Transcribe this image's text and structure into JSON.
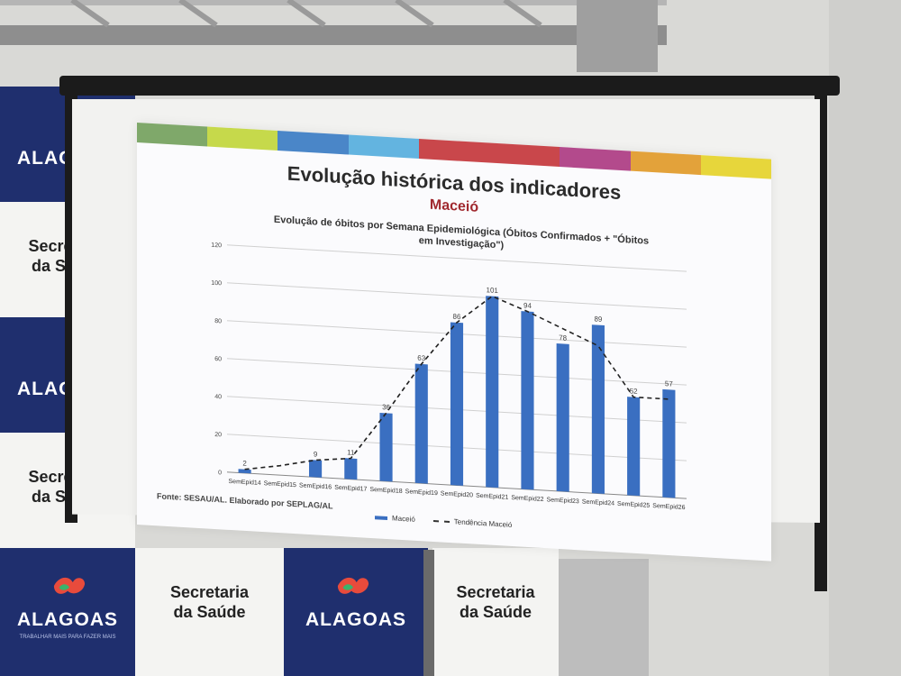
{
  "backdrop": {
    "brand": "ALAGOAS",
    "tagline": "TRABALHAR MAIS PARA FAZER MAIS",
    "dept": [
      "Secretaria",
      "da Saúde"
    ]
  },
  "slide": {
    "title": "Evolução histórica dos indicadores",
    "subtitle": "Maceió",
    "chart_title_line1": "Evolução de óbitos por Semana Epidemiológica (Óbitos Confirmados + \"Óbitos",
    "chart_title_line2": "em Investigação\")",
    "source": "Fonte: SESAU/AL. Elaborado por SEPLAG/AL",
    "strip_colors": [
      "#7fa86a",
      "#c6d94b",
      "#4a86c8",
      "#63b4e0",
      "#c9474b",
      "#c9474b",
      "#b34a8c",
      "#e3a23a",
      "#e7d63b"
    ]
  },
  "chart_data": {
    "type": "bar",
    "categories": [
      "SemEpid14",
      "SemEpid15",
      "SemEpid16",
      "SemEpid17",
      "SemEpid18",
      "SemEpid19",
      "SemEpid20",
      "SemEpid21",
      "SemEpid22",
      "SemEpid23",
      "SemEpid24",
      "SemEpid25",
      "SemEpid26"
    ],
    "series": [
      {
        "name": "Maceió",
        "values": [
          2,
          0,
          9,
          11,
          36,
          63,
          86,
          101,
          94,
          78,
          89,
          52,
          57
        ]
      },
      {
        "name": "Tendência Maceió",
        "values": [
          2,
          5,
          9,
          11,
          36,
          63,
          86,
          101,
          94,
          86,
          78,
          52,
          52
        ]
      }
    ],
    "data_labels": [
      "2",
      "",
      "9",
      "11",
      "36",
      "63",
      "86",
      "101",
      "94",
      "78",
      "89",
      "52",
      "57"
    ],
    "yticks": [
      "0",
      "20",
      "40",
      "60",
      "80",
      "100",
      "120"
    ],
    "ylim": [
      0,
      120
    ],
    "grid": true,
    "legend": "bottom",
    "bar_color": "#3a6fc1"
  }
}
